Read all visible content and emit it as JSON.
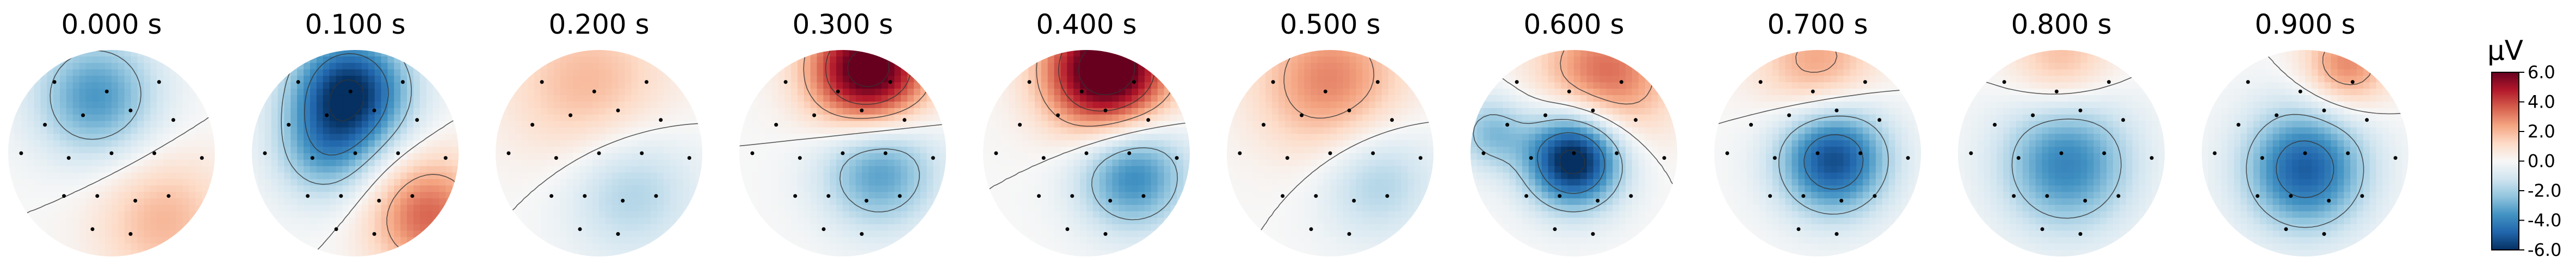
{
  "chart_data": {
    "type": "heatmap",
    "figure_kind": "EEG scalp topographic maps (time series)",
    "colormap": "RdBu_r",
    "colors": {
      "negative": "#053061",
      "zero": "#f7f7f7",
      "positive": "#67001f"
    },
    "colorbar": {
      "unit_label": "µV",
      "vmin": -6.0,
      "vmax": 6.0,
      "ticks": [
        "6.0",
        "4.0",
        "2.0",
        "0.0",
        "-2.0",
        "-4.0",
        "-6.0"
      ],
      "position": "right"
    },
    "maps": [
      {
        "title": "0.000 s",
        "time": 0.0,
        "sources": [
          {
            "u": -0.15,
            "v": -0.55,
            "amp": -3.5,
            "sigma": 0.42
          },
          {
            "u": 0.5,
            "v": 0.65,
            "amp": 2.0,
            "sigma": 0.45
          }
        ]
      },
      {
        "title": "0.100 s",
        "time": 0.1,
        "sources": [
          {
            "u": -0.05,
            "v": -0.6,
            "amp": -6.0,
            "sigma": 0.4
          },
          {
            "u": -0.3,
            "v": 0.0,
            "amp": -2.5,
            "sigma": 0.35
          },
          {
            "u": 0.7,
            "v": 0.6,
            "amp": 3.5,
            "sigma": 0.4
          }
        ]
      },
      {
        "title": "0.200 s",
        "time": 0.2,
        "sources": [
          {
            "u": -0.1,
            "v": -0.65,
            "amp": 2.0,
            "sigma": 0.55
          },
          {
            "u": 0.3,
            "v": 0.35,
            "amp": -2.0,
            "sigma": 0.45
          }
        ]
      },
      {
        "title": "0.300 s",
        "time": 0.3,
        "sources": [
          {
            "u": 0.25,
            "v": -0.8,
            "amp": 7.0,
            "sigma": 0.4
          },
          {
            "u": 0.35,
            "v": 0.15,
            "amp": -3.5,
            "sigma": 0.4
          }
        ]
      },
      {
        "title": "0.400 s",
        "time": 0.4,
        "sources": [
          {
            "u": 0.2,
            "v": -0.8,
            "amp": 7.5,
            "sigma": 0.42
          },
          {
            "u": 0.45,
            "v": 0.2,
            "amp": -4.0,
            "sigma": 0.38
          }
        ]
      },
      {
        "title": "0.500 s",
        "time": 0.5,
        "sources": [
          {
            "u": 0.0,
            "v": -0.7,
            "amp": 3.0,
            "sigma": 0.5
          },
          {
            "u": 0.45,
            "v": 0.25,
            "amp": -2.0,
            "sigma": 0.4
          }
        ]
      },
      {
        "title": "0.600 s",
        "time": 0.6,
        "sources": [
          {
            "u": 0.0,
            "v": 0.05,
            "amp": -7.0,
            "sigma": 0.33
          },
          {
            "u": 0.3,
            "v": -0.75,
            "amp": 3.5,
            "sigma": 0.45
          },
          {
            "u": -0.8,
            "v": -0.2,
            "amp": -2.5,
            "sigma": 0.25
          }
        ]
      },
      {
        "title": "0.700 s",
        "time": 0.7,
        "sources": [
          {
            "u": 0.15,
            "v": 0.05,
            "amp": -5.5,
            "sigma": 0.38
          },
          {
            "u": 0.0,
            "v": -0.85,
            "amp": 2.5,
            "sigma": 0.4
          }
        ]
      },
      {
        "title": "0.800 s",
        "time": 0.8,
        "sources": [
          {
            "u": 0.05,
            "v": 0.1,
            "amp": -4.0,
            "sigma": 0.45
          },
          {
            "u": 0.0,
            "v": -0.9,
            "amp": 2.0,
            "sigma": 0.35
          }
        ]
      },
      {
        "title": "0.900 s",
        "time": 0.9,
        "sources": [
          {
            "u": 0.0,
            "v": 0.15,
            "amp": -5.0,
            "sigma": 0.42
          },
          {
            "u": 0.4,
            "v": -0.85,
            "amp": 3.0,
            "sigma": 0.3
          }
        ]
      }
    ],
    "sensors": [
      [
        -0.6,
        -0.75
      ],
      [
        -0.05,
        -0.65
      ],
      [
        0.5,
        -0.75
      ],
      [
        -0.7,
        -0.3
      ],
      [
        -0.3,
        -0.4
      ],
      [
        0.2,
        -0.45
      ],
      [
        0.65,
        -0.35
      ],
      [
        -0.95,
        0.0
      ],
      [
        -0.45,
        0.05
      ],
      [
        0.0,
        0.0
      ],
      [
        0.45,
        0.0
      ],
      [
        0.95,
        0.05
      ],
      [
        -0.5,
        0.45
      ],
      [
        -0.15,
        0.45
      ],
      [
        0.25,
        0.5
      ],
      [
        0.6,
        0.45
      ],
      [
        -0.2,
        0.8
      ],
      [
        0.2,
        0.85
      ]
    ]
  }
}
